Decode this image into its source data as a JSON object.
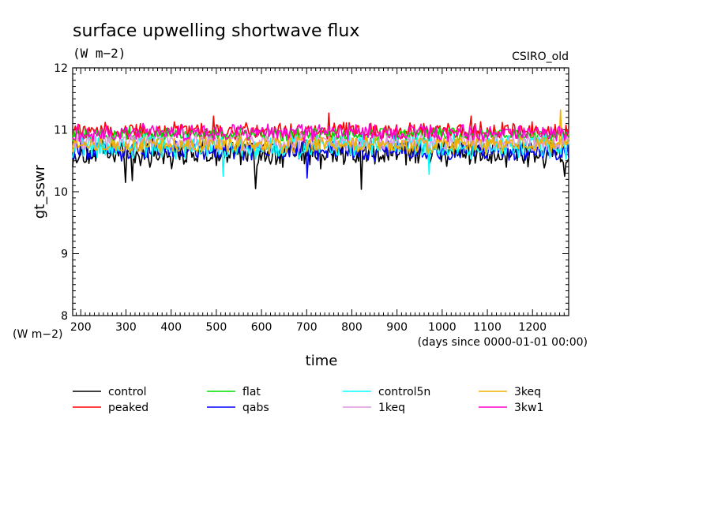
{
  "chart_data": {
    "type": "line",
    "title": "surface upwelling shortwave flux",
    "units": "(W m−2)",
    "source": "CSIRO_old",
    "ylabel": "gt_sswr",
    "yunits": "(W m−2)",
    "xlabel": "time",
    "xunits": "(days since 0000-01-01 00:00)",
    "xlim": [
      182,
      1280
    ],
    "ylim": [
      8,
      12
    ],
    "xticks": [
      200,
      300,
      400,
      500,
      600,
      700,
      800,
      900,
      1000,
      1100,
      1200
    ],
    "xtick_labels": [
      "200",
      "300",
      "400",
      "500",
      "600",
      "700",
      "800",
      "900",
      "1000",
      "1100",
      "1200"
    ],
    "yticks": [
      8,
      9,
      10,
      11,
      12
    ],
    "ytick_labels": [
      "8",
      "9",
      "10",
      "11",
      "12"
    ],
    "legend_position": "bottom",
    "series": [
      {
        "name": "control",
        "color": "#000000",
        "mean": 10.62,
        "amp": 0.2,
        "dips": [
          [
            300,
            10.15
          ],
          [
            313,
            10.18
          ],
          [
            587,
            10.05
          ],
          [
            820,
            10.04
          ],
          [
            1270,
            10.25
          ]
        ]
      },
      {
        "name": "peaked",
        "color": "#ff0000",
        "mean": 10.98,
        "amp": 0.12,
        "dips": [],
        "peaks": [
          [
            495,
            11.22
          ],
          [
            748,
            11.27
          ],
          [
            1065,
            11.22
          ]
        ]
      },
      {
        "name": "flat",
        "color": "#00dd00",
        "mean": 10.92,
        "amp": 0.1,
        "dips": []
      },
      {
        "name": "qabs",
        "color": "#0000ff",
        "mean": 10.66,
        "amp": 0.14,
        "dips": [
          [
            700,
            10.22
          ]
        ]
      },
      {
        "name": "control5n",
        "color": "#00ffff",
        "mean": 10.72,
        "amp": 0.17,
        "dips": [
          [
            515,
            10.25
          ],
          [
            970,
            10.28
          ]
        ]
      },
      {
        "name": "1keq",
        "color": "#dd99dd",
        "mean": 10.8,
        "amp": 0.12,
        "dips": []
      },
      {
        "name": "3keq",
        "color": "#f0b000",
        "mean": 10.76,
        "amp": 0.13,
        "dips": [],
        "peaks": [
          [
            1262,
            11.32
          ]
        ]
      },
      {
        "name": "3kw1",
        "color": "#ff00cc",
        "mean": 10.95,
        "amp": 0.12,
        "dips": []
      }
    ]
  }
}
